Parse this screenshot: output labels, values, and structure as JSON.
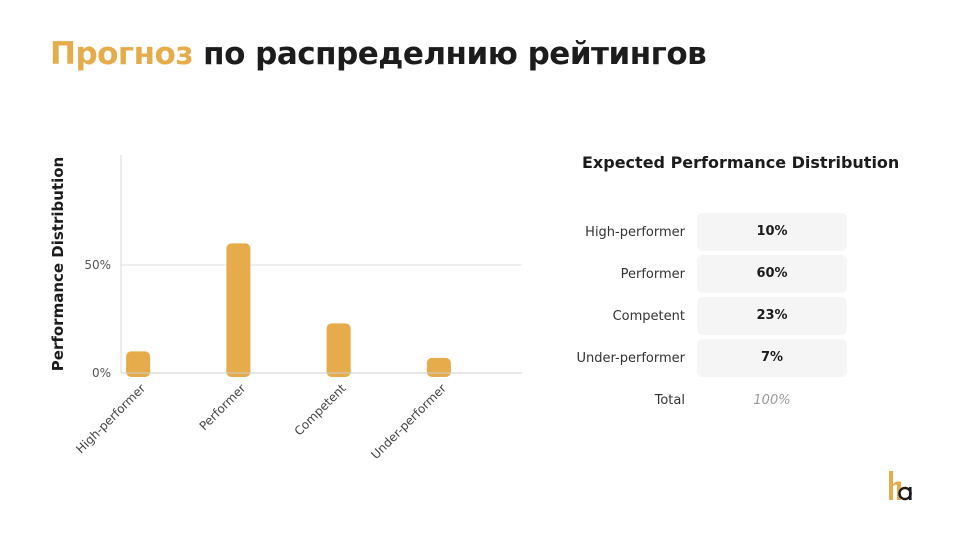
{
  "title": {
    "accent": "Прогноз",
    "rest": "по распределнию рейтингов"
  },
  "chart_data": {
    "type": "bar",
    "categories": [
      "High-performer",
      "Performer",
      "Competent",
      "Under-performer"
    ],
    "values": [
      10,
      60,
      23,
      7
    ],
    "ylabel": "Performance Distribution",
    "xlabel": "",
    "yticks": [
      {
        "value": 0,
        "label": "0%"
      },
      {
        "value": 50,
        "label": "50%"
      }
    ],
    "ylim": [
      0,
      100
    ],
    "grid": true,
    "color": "#e6ac4c"
  },
  "table": {
    "title": "Expected Performance Distribution",
    "rows": [
      {
        "label": "High-performer",
        "value": "10%"
      },
      {
        "label": "Performer",
        "value": "60%"
      },
      {
        "label": "Competent",
        "value": "23%"
      },
      {
        "label": "Under-performer",
        "value": "7%"
      }
    ],
    "total_label": "Total",
    "total_value": "100%"
  },
  "colors": {
    "accent": "#e6ac4c",
    "text": "#1c1c1c",
    "logo_dark": "#1c1c1c"
  }
}
